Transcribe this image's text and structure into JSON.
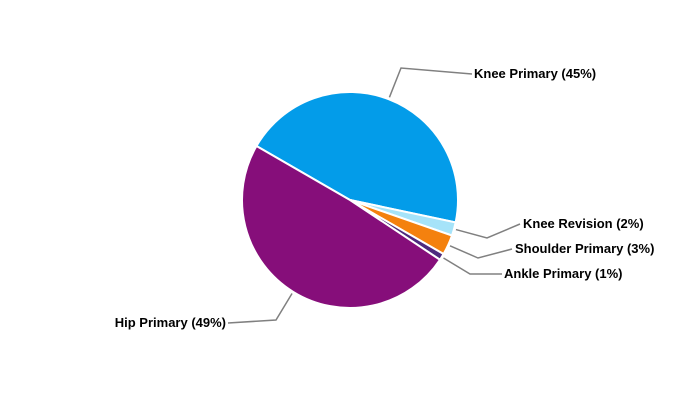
{
  "chart_data": {
    "type": "pie",
    "title": "",
    "slices": [
      {
        "label": "Knee Primary (45%)",
        "value": 45,
        "color": "#039ce9"
      },
      {
        "label": "Knee Revision (2%)",
        "value": 2,
        "color": "#a6e3f9"
      },
      {
        "label": "Shoulder Primary (3%)",
        "value": 3,
        "color": "#f4810e"
      },
      {
        "label": "Ankle Primary (1%)",
        "value": 1,
        "color": "#4e2a7e"
      },
      {
        "label": "Hip Primary (49%)",
        "value": 49,
        "color": "#860e7a"
      }
    ],
    "leader_line_color": "#808080"
  }
}
